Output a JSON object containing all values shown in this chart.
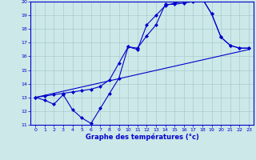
{
  "xlabel": "Graphe des températures (°c)",
  "background_color": "#cce8e8",
  "grid_color": "#aacccc",
  "line_color": "#0000cc",
  "xlim": [
    -0.5,
    23.5
  ],
  "ylim": [
    11,
    20
  ],
  "xticks": [
    0,
    1,
    2,
    3,
    4,
    5,
    6,
    7,
    8,
    9,
    10,
    11,
    12,
    13,
    14,
    15,
    16,
    17,
    18,
    19,
    20,
    21,
    22,
    23
  ],
  "yticks": [
    11,
    12,
    13,
    14,
    15,
    16,
    17,
    18,
    19,
    20
  ],
  "line1_x": [
    0,
    1,
    2,
    3,
    4,
    5,
    6,
    7,
    8,
    9,
    10,
    11,
    12,
    13,
    14,
    15,
    16,
    17,
    18,
    19,
    20,
    21,
    22,
    23
  ],
  "line1_y": [
    13.0,
    12.8,
    12.5,
    13.2,
    12.1,
    11.5,
    11.1,
    12.2,
    13.3,
    14.4,
    16.7,
    16.5,
    18.3,
    19.0,
    19.7,
    19.9,
    20.0,
    20.1,
    20.2,
    19.1,
    17.4,
    16.8,
    16.6,
    16.6
  ],
  "line2_x": [
    0,
    23
  ],
  "line2_y": [
    13.0,
    16.5
  ],
  "line3_x": [
    0,
    1,
    2,
    3,
    4,
    5,
    6,
    7,
    8,
    9,
    10,
    11,
    12,
    13,
    14,
    15,
    16,
    17,
    18,
    19,
    20,
    21,
    22,
    23
  ],
  "line3_y": [
    13.0,
    13.1,
    13.2,
    13.3,
    13.4,
    13.5,
    13.6,
    13.8,
    14.3,
    15.5,
    16.7,
    16.6,
    17.5,
    18.3,
    19.8,
    19.8,
    19.9,
    20.0,
    20.2,
    19.1,
    17.4,
    16.8,
    16.6,
    16.6
  ]
}
